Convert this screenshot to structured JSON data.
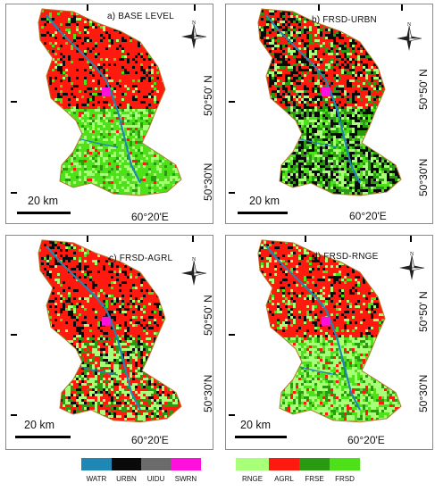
{
  "panels": [
    {
      "title": "a) BASE LEVEL",
      "scale": "20 km",
      "lat1": "50°50' N",
      "lat2": "50°30'N",
      "lon": "60°20'E",
      "scheme": "base"
    },
    {
      "title": "b) FRSD-URBN",
      "scale": "20 km",
      "lat1": "50°50' N",
      "lat2": "50°30'N",
      "lon": "60°20'E",
      "scheme": "urbn"
    },
    {
      "title": "c) FRSD-AGRL",
      "scale": "20 km",
      "lat1": "50°50' N",
      "lat2": "50°30'N",
      "lon": "60°20'E",
      "scheme": "agrl"
    },
    {
      "title": "d) FRSD-RNGE",
      "scale": "20 km",
      "lat1": "50°50' N",
      "lat2": "50°30'N",
      "lon": "60°20'E",
      "scheme": "rnge"
    }
  ],
  "north_label": "N",
  "legend": {
    "items": [
      {
        "code": "WATR",
        "color": "#1e87b4"
      },
      {
        "code": "URBN",
        "color": "#0a0a0a"
      },
      {
        "code": "UIDU",
        "color": "#6b6b6b"
      },
      {
        "code": "SWRN",
        "color": "#ff10dc"
      },
      {
        "code": "RNGE",
        "color": "#a8ff78"
      },
      {
        "code": "AGRL",
        "color": "#ff1a10"
      },
      {
        "code": "FRSE",
        "color": "#2a9a10"
      },
      {
        "code": "FRSD",
        "color": "#4ee018"
      }
    ]
  }
}
